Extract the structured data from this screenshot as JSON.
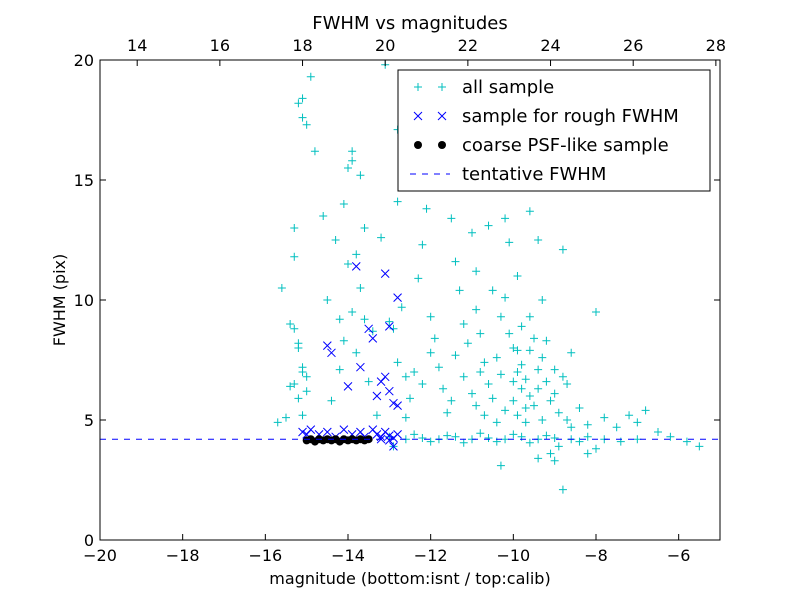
{
  "chart_data": {
    "type": "scatter",
    "title": "FWHM vs magnitudes",
    "xlabel": "magnitude (bottom:isnt / top:calib)",
    "ylabel": "FWHM (pix)",
    "xlim": [
      -20,
      -5
    ],
    "ylim": [
      0,
      20
    ],
    "top_xlim": [
      13.1,
      28.1
    ],
    "xticks": [
      -20,
      -18,
      -16,
      -14,
      -12,
      -10,
      -8,
      -6
    ],
    "xtick_labels": [
      "−20",
      "−18",
      "−16",
      "−14",
      "−12",
      "−10",
      "−8",
      "−6"
    ],
    "top_xticks": [
      14,
      16,
      18,
      20,
      22,
      24,
      26,
      28
    ],
    "top_xtick_labels": [
      "14",
      "16",
      "18",
      "20",
      "22",
      "24",
      "26",
      "28"
    ],
    "yticks": [
      0,
      5,
      10,
      15,
      20
    ],
    "ytick_labels": [
      "0",
      "5",
      "10",
      "15",
      "20"
    ],
    "grid": false,
    "legend_position": "top-right",
    "tentative_fwhm": 4.2,
    "series": [
      {
        "name": "all sample",
        "marker": "+",
        "color": "#00bfbf",
        "points": [
          [
            -15.6,
            10.5
          ],
          [
            -15.3,
            13
          ],
          [
            -15.3,
            11.8
          ],
          [
            -15.2,
            18.2
          ],
          [
            -15.1,
            18.4
          ],
          [
            -15.1,
            17.6
          ],
          [
            -15,
            17.3
          ],
          [
            -14.9,
            19.3
          ],
          [
            -15.4,
            9
          ],
          [
            -15.3,
            8.8
          ],
          [
            -15.2,
            8.2
          ],
          [
            -15.1,
            7.2
          ],
          [
            -15,
            6.8
          ],
          [
            -15.3,
            6.5
          ],
          [
            -15.2,
            5.9
          ],
          [
            -15.5,
            5.1
          ],
          [
            -15.1,
            5.2
          ],
          [
            -15.7,
            4.9
          ],
          [
            -15.2,
            8.0
          ],
          [
            -15.1,
            7.0
          ],
          [
            -15.0,
            6.2
          ],
          [
            -15.4,
            6.4
          ],
          [
            -14.8,
            16.2
          ],
          [
            -14.6,
            13.5
          ],
          [
            -14.5,
            10
          ],
          [
            -14.3,
            12.5
          ],
          [
            -14.2,
            9.2
          ],
          [
            -14.1,
            14
          ],
          [
            -14.0,
            15.5
          ],
          [
            -13.9,
            16.2
          ],
          [
            -13.9,
            15.8
          ],
          [
            -13.7,
            15.2
          ],
          [
            -13.6,
            13
          ],
          [
            -13.8,
            11.9
          ],
          [
            -14.0,
            11.5
          ],
          [
            -13.7,
            10.5
          ],
          [
            -13.9,
            9.5
          ],
          [
            -13.6,
            9.2
          ],
          [
            -13.4,
            8.7
          ],
          [
            -14.1,
            8.3
          ],
          [
            -13.8,
            7.8
          ],
          [
            -14.2,
            7.1
          ],
          [
            -13.5,
            6.6
          ],
          [
            -14.4,
            5.8
          ],
          [
            -13.3,
            5.2
          ],
          [
            -13.2,
            12.6
          ],
          [
            -13.0,
            9.1
          ],
          [
            -12.9,
            8.8
          ],
          [
            -12.7,
            9.7
          ],
          [
            -12.8,
            17.1
          ],
          [
            -12.8,
            14.1
          ],
          [
            -13.1,
            19.8
          ],
          [
            -12.8,
            7.4
          ],
          [
            -12.6,
            6.8
          ],
          [
            -12.5,
            5.9
          ],
          [
            -12.4,
            7
          ],
          [
            -12.3,
            10.9
          ],
          [
            -12.2,
            12.3
          ],
          [
            -12.1,
            13.8
          ],
          [
            -12,
            9.3
          ],
          [
            -11.9,
            8.4
          ],
          [
            -11.8,
            7.2
          ],
          [
            -11.7,
            6.3
          ],
          [
            -11.6,
            5.3
          ],
          [
            -11.5,
            13.4
          ],
          [
            -11.4,
            11.6
          ],
          [
            -11.3,
            10.4
          ],
          [
            -11.2,
            9
          ],
          [
            -11,
            12.8
          ],
          [
            -10.9,
            11.2
          ],
          [
            -10.8,
            8.6
          ],
          [
            -10.7,
            7.4
          ],
          [
            -10.6,
            13.1
          ],
          [
            -10.5,
            10.4
          ],
          [
            -10.3,
            9.3
          ],
          [
            -10.2,
            13.4
          ],
          [
            -10.1,
            12.4
          ],
          [
            -10,
            8
          ],
          [
            -9.9,
            7
          ],
          [
            -9.8,
            6.3
          ],
          [
            -9.7,
            5.5
          ],
          [
            -9.6,
            13.7
          ],
          [
            -9.4,
            12.5
          ],
          [
            -9.3,
            10
          ],
          [
            -9.2,
            8.3
          ],
          [
            -9,
            7.1
          ],
          [
            -8.8,
            12.1
          ],
          [
            -8.7,
            6.5
          ],
          [
            -8.6,
            7.8
          ],
          [
            -8.4,
            5.5
          ],
          [
            -8.2,
            4.8
          ],
          [
            -8,
            9.5
          ],
          [
            -7.8,
            5.1
          ],
          [
            -7.5,
            4.7
          ],
          [
            -7.2,
            5.2
          ],
          [
            -7,
            4.9
          ],
          [
            -6.8,
            5.4
          ],
          [
            -6.5,
            4.5
          ],
          [
            -6.2,
            4.3
          ],
          [
            -5.8,
            4.1
          ],
          [
            -5.5,
            3.9
          ],
          [
            -8.8,
            2.1
          ],
          [
            -9.4,
            3.4
          ],
          [
            -10.3,
            3.1
          ],
          [
            -9.1,
            3.6
          ],
          [
            -8.9,
            3.9
          ],
          [
            -11.2,
            6.8
          ],
          [
            -11.0,
            6.1
          ],
          [
            -10.9,
            5.6
          ],
          [
            -10.8,
            7.0
          ],
          [
            -10.6,
            6.5
          ],
          [
            -10.5,
            5.9
          ],
          [
            -10.4,
            7.6
          ],
          [
            -10.3,
            6.9
          ],
          [
            -10.2,
            5.4
          ],
          [
            -10.1,
            8.6
          ],
          [
            -10.0,
            6.6
          ],
          [
            -10.0,
            5.8
          ],
          [
            -9.9,
            7.9
          ],
          [
            -9.9,
            5.2
          ],
          [
            -9.8,
            8.9
          ],
          [
            -9.8,
            7.3
          ],
          [
            -9.7,
            6.7
          ],
          [
            -9.7,
            4.9
          ],
          [
            -9.6,
            7.9
          ],
          [
            -9.6,
            6.0
          ],
          [
            -9.5,
            8.4
          ],
          [
            -9.5,
            5.6
          ],
          [
            -9.4,
            7.1
          ],
          [
            -9.4,
            6.3
          ],
          [
            -9.3,
            5.0
          ],
          [
            -9.3,
            7.6
          ],
          [
            -9.2,
            6.6
          ],
          [
            -9.1,
            5.8
          ],
          [
            -9.0,
            6.1
          ],
          [
            -8.9,
            5.3
          ],
          [
            -8.8,
            6.8
          ],
          [
            -8.7,
            5.0
          ],
          [
            -8.6,
            4.7
          ],
          [
            -10.7,
            5.2
          ],
          [
            -10.4,
            4.9
          ],
          [
            -11.4,
            7.7
          ],
          [
            -11.5,
            5.8
          ],
          [
            -10.9,
            9.6
          ],
          [
            -9.6,
            9.3
          ],
          [
            -10.2,
            10.1
          ],
          [
            -9.9,
            11.0
          ],
          [
            -11.1,
            8.2
          ],
          [
            -12.0,
            7.8
          ],
          [
            -12.2,
            6.5
          ],
          [
            -12.6,
            5.1
          ],
          [
            -13.0,
            4.3
          ],
          [
            -12.6,
            4.2
          ],
          [
            -12.2,
            4.25
          ],
          [
            -11.8,
            4.2
          ],
          [
            -11.4,
            4.3
          ],
          [
            -11.0,
            4.2
          ],
          [
            -10.6,
            4.25
          ],
          [
            -10.2,
            4.2
          ],
          [
            -9.8,
            4.3
          ],
          [
            -9.4,
            4.2
          ],
          [
            -9.0,
            4.25
          ],
          [
            -8.6,
            4.2
          ],
          [
            -8.2,
            4.3
          ],
          [
            -7.8,
            4.2
          ],
          [
            -7.4,
            4.1
          ],
          [
            -7.0,
            4.2
          ],
          [
            -12.4,
            4.4
          ],
          [
            -11.6,
            4.35
          ],
          [
            -10.8,
            4.45
          ],
          [
            -10.0,
            4.4
          ],
          [
            -9.2,
            4.35
          ],
          [
            -8.4,
            4.1
          ],
          [
            -12.9,
            3.9
          ],
          [
            -12.0,
            4.1
          ],
          [
            -11.2,
            4.05
          ],
          [
            -10.4,
            4.1
          ],
          [
            -9.6,
            4.05
          ],
          [
            -8.0,
            3.8
          ],
          [
            -8.2,
            3.6
          ],
          [
            -9.0,
            3.3
          ]
        ]
      },
      {
        "name": "sample for rough FWHM",
        "marker": "x",
        "color": "#0000ff",
        "points": [
          [
            -13.8,
            11.4
          ],
          [
            -13.1,
            11.1
          ],
          [
            -12.8,
            10.1
          ],
          [
            -13.5,
            8.8
          ],
          [
            -13.4,
            8.4
          ],
          [
            -13.0,
            8.9
          ],
          [
            -14.5,
            8.1
          ],
          [
            -14.4,
            7.8
          ],
          [
            -13.7,
            7.2
          ],
          [
            -14.0,
            6.4
          ],
          [
            -13.2,
            6.6
          ],
          [
            -13.1,
            6.8
          ],
          [
            -13.3,
            6.0
          ],
          [
            -13.0,
            6.2
          ],
          [
            -12.9,
            5.7
          ],
          [
            -12.8,
            5.6
          ],
          [
            -15.1,
            4.5
          ],
          [
            -15.0,
            4.4
          ],
          [
            -14.9,
            4.6
          ],
          [
            -14.7,
            4.4
          ],
          [
            -14.5,
            4.5
          ],
          [
            -14.3,
            4.3
          ],
          [
            -14.1,
            4.6
          ],
          [
            -13.9,
            4.4
          ],
          [
            -13.7,
            4.5
          ],
          [
            -13.6,
            4.3
          ],
          [
            -13.4,
            4.6
          ],
          [
            -13.3,
            4.4
          ],
          [
            -13.2,
            4.3
          ],
          [
            -13.1,
            4.5
          ],
          [
            -13.0,
            4.35
          ],
          [
            -12.9,
            4.25
          ],
          [
            -12.8,
            4.4
          ],
          [
            -13.2,
            4.2
          ],
          [
            -13.0,
            4.15
          ],
          [
            -12.9,
            3.9
          ]
        ]
      },
      {
        "name": "coarse PSF-like sample",
        "marker": "o",
        "color": "#000000",
        "points": [
          [
            -15.0,
            4.15
          ],
          [
            -14.9,
            4.2
          ],
          [
            -14.8,
            4.1
          ],
          [
            -14.7,
            4.2
          ],
          [
            -14.6,
            4.15
          ],
          [
            -14.5,
            4.2
          ],
          [
            -14.4,
            4.15
          ],
          [
            -14.3,
            4.2
          ],
          [
            -14.2,
            4.1
          ],
          [
            -14.1,
            4.2
          ],
          [
            -14.0,
            4.15
          ],
          [
            -13.9,
            4.2
          ],
          [
            -13.8,
            4.15
          ],
          [
            -13.7,
            4.2
          ],
          [
            -13.6,
            4.15
          ],
          [
            -13.5,
            4.2
          ]
        ]
      },
      {
        "name": "tentative FWHM",
        "marker": "dashed-line",
        "color": "#0000ff",
        "points": []
      }
    ]
  }
}
